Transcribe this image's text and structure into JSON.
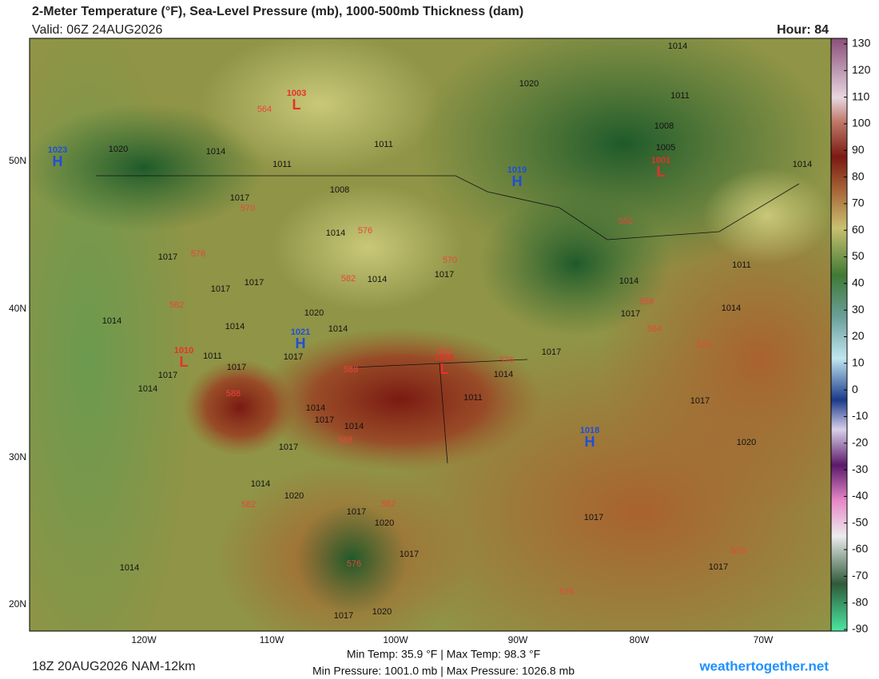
{
  "header": {
    "title": "2-Meter Temperature (°F), Sea-Level Pressure (mb), 1000-500mb Thickness (dam)",
    "valid": "Valid: 06Z 24AUG2026",
    "hour": "Hour: 84"
  },
  "map": {
    "lon_ticks": [
      "120W",
      "110W",
      "100W",
      "90W",
      "80W",
      "70W"
    ],
    "lat_ticks": [
      "50N",
      "40N",
      "30N",
      "20N"
    ],
    "isobar_labels": [
      "1014",
      "1020",
      "1011",
      "1008",
      "1005",
      "1014",
      "1020",
      "1014",
      "1011",
      "1011",
      "1008",
      "1017",
      "1014",
      "1017",
      "1017",
      "1017",
      "1014",
      "1017",
      "1020",
      "1014",
      "1014",
      "1014",
      "1011",
      "1017",
      "1017",
      "1017",
      "1014",
      "1014",
      "1017",
      "1014",
      "1017",
      "1011",
      "1014",
      "1017",
      "1017",
      "1014",
      "1014",
      "1011",
      "1017",
      "1020",
      "1014",
      "1020",
      "1017",
      "1020",
      "1017",
      "1017",
      "1017",
      "1014",
      "1017",
      "1020"
    ],
    "highs": [
      {
        "letter": "H",
        "pressure": "1023"
      },
      {
        "letter": "H",
        "pressure": "1019"
      },
      {
        "letter": "H",
        "pressure": "1021"
      },
      {
        "letter": "H",
        "pressure": "1018"
      }
    ],
    "lows": [
      {
        "letter": "L",
        "pressure": "1003"
      },
      {
        "letter": "L",
        "pressure": "1001"
      },
      {
        "letter": "L",
        "pressure": "1010"
      },
      {
        "letter": "L",
        "pressure": "1005"
      }
    ],
    "thickness_labels": [
      "564",
      "570",
      "576",
      "582",
      "576",
      "570",
      "582",
      "588",
      "582",
      "576",
      "588",
      "588",
      "582",
      "582",
      "576",
      "576",
      "576",
      "552",
      "558",
      "564",
      "570"
    ]
  },
  "colorbar": {
    "ticks": [
      130,
      120,
      110,
      100,
      90,
      80,
      70,
      60,
      50,
      40,
      30,
      20,
      10,
      0,
      -10,
      -20,
      -30,
      -40,
      -50,
      -60,
      -70,
      -80,
      -90
    ]
  },
  "footer": {
    "run": "18Z 20AUG2026 NAM-12km",
    "temps": "Min Temp:  35.9 °F | Max Temp:  98.3 °F",
    "pressures": "Min Pressure: 1001.0 mb | Max Pressure: 1026.8 mb",
    "site": "weathertogether.net"
  }
}
